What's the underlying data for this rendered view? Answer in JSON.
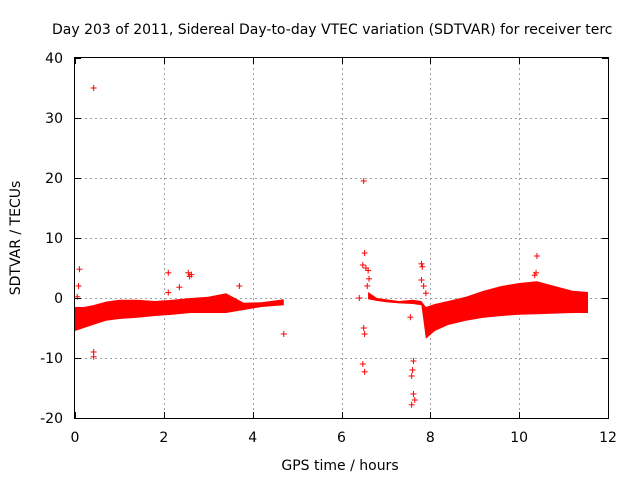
{
  "chart_data": {
    "type": "scatter",
    "title": "Day 203 of 2011, Sidereal Day-to-day VTEC variation (SDTVAR) for receiver terc",
    "xlabel": "GPS time / hours",
    "ylabel": "SDTVAR / TECUs",
    "xlim": [
      0,
      12
    ],
    "ylim": [
      -20,
      40
    ],
    "xticks": [
      0,
      2,
      4,
      6,
      8,
      10,
      12
    ],
    "yticks": [
      -20,
      -10,
      0,
      10,
      20,
      30,
      40
    ],
    "grid": true,
    "color": "#ff0000",
    "marker": "plus",
    "series": [
      {
        "name": "SDTVAR",
        "bands": [
          {
            "x": [
              0.0,
              0.2,
              0.4,
              0.7,
              1.0,
              1.4,
              1.8,
              2.2,
              2.6,
              3.0,
              3.4,
              3.8,
              4.2,
              4.7
            ],
            "lower": [
              -5.5,
              -5.0,
              -4.5,
              -3.8,
              -3.5,
              -3.3,
              -3.0,
              -2.8,
              -2.5,
              -2.5,
              -2.5,
              -2.0,
              -1.5,
              -1.2
            ],
            "upper": [
              -1.5,
              -1.5,
              -1.2,
              -0.6,
              -0.3,
              -0.3,
              -0.5,
              -0.3,
              0.0,
              0.2,
              0.8,
              -0.8,
              -0.7,
              -0.2
            ]
          },
          {
            "x": [
              6.6,
              6.8,
              7.0,
              7.3,
              7.6,
              7.8,
              7.9,
              8.1,
              8.4,
              8.8,
              9.2,
              9.6,
              10.0,
              10.4,
              10.8,
              11.2,
              11.55
            ],
            "lower": [
              -0.2,
              -0.5,
              -0.7,
              -0.9,
              -1.0,
              -1.2,
              -6.8,
              -5.5,
              -4.5,
              -3.8,
              -3.3,
              -3.0,
              -2.8,
              -2.7,
              -2.6,
              -2.5,
              -2.5
            ],
            "upper": [
              1.0,
              0.0,
              -0.2,
              -0.5,
              -0.3,
              -0.5,
              -1.5,
              -1.0,
              -0.5,
              0.2,
              1.2,
              2.0,
              2.5,
              2.8,
              2.0,
              1.2,
              1.0
            ]
          }
        ],
        "points": [
          {
            "x": 0.42,
            "y": 35.0
          },
          {
            "x": 0.1,
            "y": 4.8
          },
          {
            "x": 0.08,
            "y": 2.0
          },
          {
            "x": 0.05,
            "y": 0.2
          },
          {
            "x": 0.42,
            "y": -9.0
          },
          {
            "x": 0.42,
            "y": -9.8
          },
          {
            "x": 2.1,
            "y": 4.2
          },
          {
            "x": 2.1,
            "y": 0.9
          },
          {
            "x": 2.35,
            "y": 1.8
          },
          {
            "x": 2.55,
            "y": 4.2
          },
          {
            "x": 2.58,
            "y": 3.6
          },
          {
            "x": 2.62,
            "y": 3.9
          },
          {
            "x": 3.7,
            "y": 2.0
          },
          {
            "x": 4.7,
            "y": -6.0
          },
          {
            "x": 6.5,
            "y": 19.5
          },
          {
            "x": 6.52,
            "y": 7.5
          },
          {
            "x": 6.48,
            "y": 5.5
          },
          {
            "x": 6.55,
            "y": 5.0
          },
          {
            "x": 6.6,
            "y": 4.6
          },
          {
            "x": 6.62,
            "y": 3.2
          },
          {
            "x": 6.58,
            "y": 2.0
          },
          {
            "x": 6.5,
            "y": -5.0
          },
          {
            "x": 6.52,
            "y": -6.0
          },
          {
            "x": 6.48,
            "y": -11.0
          },
          {
            "x": 6.52,
            "y": -12.3
          },
          {
            "x": 6.4,
            "y": 0.0
          },
          {
            "x": 7.55,
            "y": -3.2
          },
          {
            "x": 7.62,
            "y": -10.5
          },
          {
            "x": 7.6,
            "y": -12.0
          },
          {
            "x": 7.58,
            "y": -13.0
          },
          {
            "x": 7.62,
            "y": -16.0
          },
          {
            "x": 7.58,
            "y": -17.8
          },
          {
            "x": 7.65,
            "y": -17.0
          },
          {
            "x": 7.8,
            "y": 5.7
          },
          {
            "x": 7.82,
            "y": 5.2
          },
          {
            "x": 7.8,
            "y": 3.0
          },
          {
            "x": 7.85,
            "y": 2.0
          },
          {
            "x": 7.9,
            "y": 0.8
          },
          {
            "x": 10.4,
            "y": 7.0
          },
          {
            "x": 10.38,
            "y": 4.2
          },
          {
            "x": 10.35,
            "y": 3.8
          }
        ]
      }
    ]
  }
}
